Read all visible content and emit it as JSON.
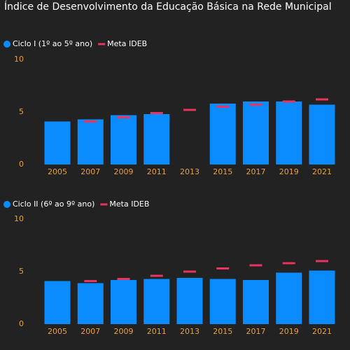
{
  "title": "Índice de Desenvolvimento da Educação Básica na Rede Municipal",
  "chart_data": [
    {
      "type": "bar",
      "categories": [
        "2005",
        "2007",
        "2009",
        "2011",
        "2013",
        "2015",
        "2017",
        "2019",
        "2021"
      ],
      "series": [
        {
          "name": "Ciclo I (1º ao 5º ano)",
          "color": "#0a8cff",
          "kind": "bar",
          "values": [
            4.1,
            4.3,
            4.7,
            4.8,
            null,
            5.8,
            6.0,
            6.0,
            5.7
          ]
        },
        {
          "name": "Meta IDEB",
          "color": "#e8345f",
          "kind": "dash",
          "values": [
            null,
            4.1,
            4.5,
            4.9,
            5.2,
            5.5,
            5.7,
            6.0,
            6.2
          ]
        }
      ],
      "ylim": [
        0,
        10
      ],
      "yticks": [
        0,
        5,
        10
      ],
      "grid": false
    },
    {
      "type": "bar",
      "categories": [
        "2005",
        "2007",
        "2009",
        "2011",
        "2013",
        "2015",
        "2017",
        "2019",
        "2021"
      ],
      "series": [
        {
          "name": "Ciclo II (6º ao 9º ano)",
          "color": "#0a8cff",
          "kind": "bar",
          "values": [
            4.1,
            3.9,
            4.2,
            4.3,
            4.4,
            4.3,
            4.2,
            4.9,
            5.1
          ]
        },
        {
          "name": "Meta IDEB",
          "color": "#e8345f",
          "kind": "dash",
          "values": [
            null,
            4.1,
            4.3,
            4.6,
            5.0,
            5.3,
            5.6,
            5.8,
            6.0
          ]
        }
      ],
      "ylim": [
        0,
        10
      ],
      "yticks": [
        0,
        5,
        10
      ],
      "grid": false
    }
  ]
}
